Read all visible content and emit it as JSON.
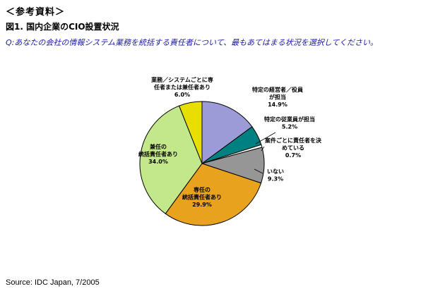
{
  "reference_heading": "＜参考資料＞",
  "figure_title": "図1. 国内企業のCIO設置状況",
  "question": "Q:あなたの会社の情報システム業務を統括する責任者について、最もあてはまる状況を選択してください。",
  "source": "Source: IDC Japan, 7/2005",
  "chart_data": {
    "type": "pie",
    "start_angle_deg": -90,
    "direction": "clockwise",
    "slices": [
      {
        "label_lines": [
          "特定の経営者／役員",
          "が担当"
        ],
        "value": 14.9,
        "value_label": "14.9%",
        "color": "#9b9bd7"
      },
      {
        "label_lines": [
          "特定の従業員が担当"
        ],
        "value": 5.2,
        "value_label": "5.2%",
        "color": "#008080"
      },
      {
        "label_lines": [
          "案件ごとに責任者を決",
          "めている"
        ],
        "value": 0.7,
        "value_label": "0.7%",
        "color": "#ffffff"
      },
      {
        "label_lines": [
          "いない"
        ],
        "value": 9.3,
        "value_label": "9.3%",
        "color": "#969696"
      },
      {
        "label_lines": [
          "専任の",
          "統括責任者あり"
        ],
        "value": 29.9,
        "value_label": "29.9%",
        "color": "#e8a21e"
      },
      {
        "label_lines": [
          "兼任の",
          "統括責任者あり"
        ],
        "value": 34.0,
        "value_label": "34.0%",
        "color": "#c3e88a"
      },
      {
        "label_lines": [
          "業務／システムごとに専",
          "任者または兼任者あり"
        ],
        "value": 6.0,
        "value_label": "6.0%",
        "color": "#e6df00"
      }
    ]
  }
}
